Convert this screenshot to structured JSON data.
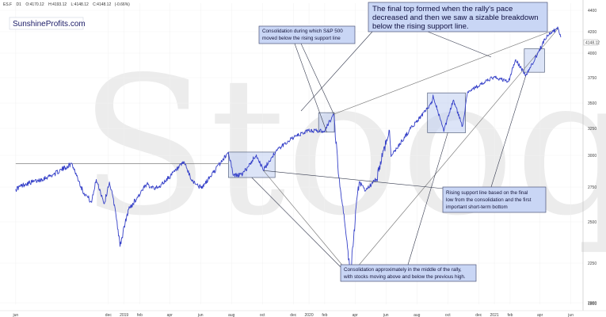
{
  "header": {
    "symbol": "ES.F",
    "interval": "D1",
    "open": "O:4170.12",
    "high": "H:4193.12",
    "low": "L:4148.12",
    "close": "C:4148.12",
    "change": "(-0.66%)",
    "last_price": "4148.12"
  },
  "brand": "SunshineProfits.com",
  "watermark": "Stooq",
  "annotations": {
    "final_top": [
      "The final top formed when the rally's pace",
      "decreased and then we saw a sizable breakdown",
      "below the rising support line."
    ],
    "consolidation_sp": [
      "Consolidation during which S&P 500",
      "moved below the rising support line"
    ],
    "rising_support": [
      "Rising support line based on the final",
      "low from the consolidation and the first",
      "important short-term bottom"
    ],
    "consolidation_middle": [
      "Consolidation approximately in the middle of the rally,",
      "with stocks moving above and below the previous high."
    ]
  },
  "colors": {
    "price_line": "#3540c8",
    "box_fill": "#c4d2f2",
    "box_stroke": "#56627e",
    "callout_fill": "#c9d6f5",
    "callout_stroke": "#4c5478",
    "guide_line": "#808080",
    "leader_line": "#353a4e",
    "watermark": "#ececec"
  },
  "chart_data": {
    "type": "line",
    "series": [
      {
        "points": [
          [
            "2018-06-01",
            2735
          ],
          [
            "2018-06-20",
            2775
          ],
          [
            "2018-07-15",
            2800
          ],
          [
            "2018-08-15",
            2850
          ],
          [
            "2018-09-20",
            2935
          ],
          [
            "2018-10-11",
            2725
          ],
          [
            "2018-10-29",
            2640
          ],
          [
            "2018-11-07",
            2810
          ],
          [
            "2018-11-23",
            2630
          ],
          [
            "2018-12-03",
            2790
          ],
          [
            "2018-12-14",
            2600
          ],
          [
            "2018-12-24",
            2351
          ],
          [
            "2019-01-10",
            2590
          ],
          [
            "2019-02-15",
            2770
          ],
          [
            "2019-03-08",
            2740
          ],
          [
            "2019-04-30",
            2945
          ],
          [
            "2019-05-13",
            2810
          ],
          [
            "2019-06-03",
            2740
          ],
          [
            "2019-07-26",
            3025
          ],
          [
            "2019-08-05",
            2840
          ],
          [
            "2019-08-23",
            2850
          ],
          [
            "2019-09-19",
            3005
          ],
          [
            "2019-10-03",
            2880
          ],
          [
            "2019-10-28",
            3040
          ],
          [
            "2019-11-27",
            3155
          ],
          [
            "2019-12-31",
            3230
          ],
          [
            "2020-01-31",
            3225
          ],
          [
            "2020-02-19",
            3390
          ],
          [
            "2020-02-28",
            2855
          ],
          [
            "2020-03-12",
            2480
          ],
          [
            "2020-03-23",
            2175
          ],
          [
            "2020-04-09",
            2790
          ],
          [
            "2020-04-21",
            2720
          ],
          [
            "2020-05-13",
            2810
          ],
          [
            "2020-06-08",
            3230
          ],
          [
            "2020-06-11",
            2990
          ],
          [
            "2020-07-20",
            3250
          ],
          [
            "2020-08-31",
            3500
          ],
          [
            "2020-09-02",
            3580
          ],
          [
            "2020-09-23",
            3220
          ],
          [
            "2020-10-12",
            3530
          ],
          [
            "2020-10-30",
            3270
          ],
          [
            "2020-11-09",
            3610
          ],
          [
            "2020-12-31",
            3755
          ],
          [
            "2021-01-29",
            3710
          ],
          [
            "2021-02-12",
            3935
          ],
          [
            "2021-03-04",
            3770
          ],
          [
            "2021-04-15",
            4170
          ],
          [
            "2021-05-07",
            4230
          ],
          [
            "2021-05-12",
            4148
          ]
        ]
      }
    ],
    "ylim": [
      1800,
      4400
    ],
    "y_ticks": [
      "4400",
      "4200",
      "4000",
      "3750",
      "3500",
      "3250",
      "3000",
      "2750",
      "2500",
      "2250",
      "2000",
      "1800"
    ],
    "x_ticks": [
      {
        "date": "2018-06-01",
        "label": "jun"
      },
      {
        "date": "2018-12-01",
        "label": "dec"
      },
      {
        "date": "2019-01-01",
        "label": "2019"
      },
      {
        "date": "2019-02-01",
        "label": "feb"
      },
      {
        "date": "2019-04-01",
        "label": "apr"
      },
      {
        "date": "2019-06-01",
        "label": "jun"
      },
      {
        "date": "2019-08-01",
        "label": "aug"
      },
      {
        "date": "2019-10-01",
        "label": "oct"
      },
      {
        "date": "2019-12-01",
        "label": "dec"
      },
      {
        "date": "2020-01-01",
        "label": "2020"
      },
      {
        "date": "2020-02-01",
        "label": "feb"
      },
      {
        "date": "2020-04-01",
        "label": "apr"
      },
      {
        "date": "2020-06-01",
        "label": "jun"
      },
      {
        "date": "2020-08-01",
        "label": "aug"
      },
      {
        "date": "2020-10-01",
        "label": "oct"
      },
      {
        "date": "2020-12-01",
        "label": "dec"
      },
      {
        "date": "2021-01-01",
        "label": "2021"
      },
      {
        "date": "2021-02-01",
        "label": "feb"
      },
      {
        "date": "2021-04-01",
        "label": "apr"
      },
      {
        "date": "2021-06-01",
        "label": "jun"
      }
    ],
    "consolidation_boxes": [
      {
        "start": "2019-07-26",
        "end": "2019-10-26",
        "top": 3030,
        "bottom": 2825
      },
      {
        "start": "2020-01-20",
        "end": "2020-02-20",
        "top": 3405,
        "bottom": 3215
      },
      {
        "start": "2020-08-22",
        "end": "2020-11-05",
        "top": 3600,
        "bottom": 3210
      },
      {
        "start": "2021-03-01",
        "end": "2021-04-10",
        "top": 4040,
        "bottom": 3805
      }
    ],
    "reference_lines": [
      {
        "start": [
          "2018-06-01",
          2935
        ],
        "end": [
          "2019-07-26",
          2935
        ]
      },
      {
        "start": [
          "2020-02-19",
          3390
        ],
        "end": [
          "2021-05-07",
          4230
        ]
      },
      {
        "start": [
          "2019-10-03",
          2880
        ],
        "end": [
          "2020-03-23",
          2175
        ]
      },
      {
        "start": [
          "2020-03-23",
          2175
        ],
        "end": [
          "2021-05-07",
          4230
        ]
      }
    ],
    "grid": true,
    "legend": "none"
  }
}
